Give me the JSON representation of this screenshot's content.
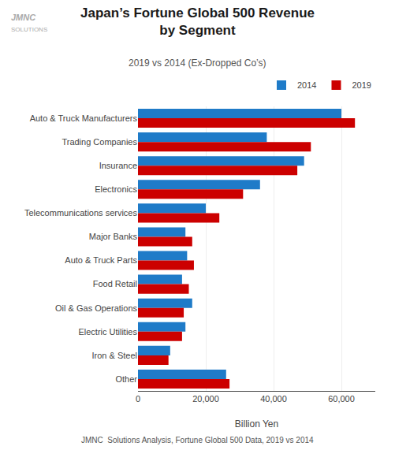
{
  "chart_data": {
    "type": "bar",
    "orientation": "horizontal",
    "title": "Japan’s Fortune Global 500 Revenue\nby Segment",
    "subtitle": "2019 vs 2014 (Ex-Dropped Co’s)",
    "xlabel": "Billion Yen",
    "annotations": [
      "JMNC",
      "SOLUTIONS",
      "JMNC  Solutions Analysis, Fortune Global 500 Data, 2019 vs 2014"
    ],
    "categories": [
      "Auto & Truck Manufacturers",
      "Trading Companies",
      "Insurance",
      "Electronics",
      "Telecommunications services",
      "Major Banks",
      "Auto & Truck Parts",
      "Food Retail",
      "Oil & Gas Operations",
      "Electric Utilities",
      "Iron & Steel",
      "Other"
    ],
    "series": [
      {
        "name": "2014",
        "color": "#1F7BC8",
        "values": [
          60000,
          38000,
          49000,
          36000,
          20000,
          14000,
          14500,
          13000,
          16000,
          14000,
          9500,
          26000
        ]
      },
      {
        "name": "2019",
        "color": "#CC0000",
        "values": [
          64000,
          51000,
          47000,
          31000,
          24000,
          16000,
          16500,
          15000,
          13500,
          13000,
          9000,
          27000
        ]
      }
    ],
    "xlim": [
      0,
      70000
    ],
    "xticks": [
      0,
      {
        "value": 20000,
        "label": "20,000"
      },
      {
        "value": 40000,
        "label": "40,000"
      },
      {
        "value": 60000,
        "label": "60,000"
      }
    ],
    "grid": true,
    "legend": "upper right"
  }
}
